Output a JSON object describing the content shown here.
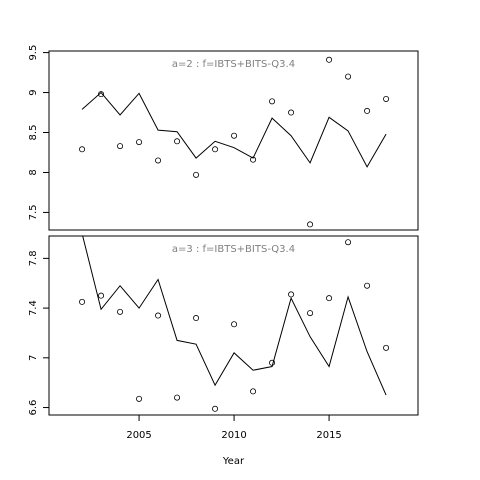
{
  "chart_data": [
    {
      "type": "line",
      "title": "a=2  :  f=IBTS+BITS-Q3.4",
      "x": [
        2002,
        2003,
        2004,
        2005,
        2006,
        2007,
        2008,
        2009,
        2010,
        2011,
        2012,
        2013,
        2014,
        2015,
        2016,
        2017,
        2018
      ],
      "series": [
        {
          "mode": "line",
          "color": "#000000",
          "values": [
            8.79,
            9.0,
            8.72,
            8.99,
            8.53,
            8.51,
            8.18,
            8.39,
            8.31,
            8.18,
            8.68,
            8.46,
            8.12,
            8.69,
            8.52,
            8.07,
            8.48
          ]
        },
        {
          "mode": "points",
          "color": "#000000",
          "values": [
            8.29,
            8.98,
            8.33,
            8.38,
            8.15,
            8.39,
            7.97,
            8.29,
            8.46,
            8.16,
            8.89,
            8.75,
            7.35,
            9.41,
            9.2,
            8.77,
            8.92
          ]
        }
      ],
      "xlim": [
        2000.26,
        2019.68
      ],
      "ylim": [
        7.28,
        9.52
      ],
      "yticks": [
        7.5,
        8.0,
        8.5,
        9.0,
        9.5
      ]
    },
    {
      "type": "line",
      "title": "a=3  :  f=IBTS+BITS-Q3.4",
      "xlabel": "Year",
      "x": [
        2002,
        2003,
        2004,
        2005,
        2006,
        2007,
        2008,
        2009,
        2010,
        2011,
        2012,
        2013,
        2014,
        2015,
        2016,
        2017,
        2018
      ],
      "series": [
        {
          "mode": "line",
          "color": "#000000",
          "values": [
            8.0,
            7.39,
            7.58,
            7.4,
            7.63,
            7.14,
            7.11,
            6.78,
            7.04,
            6.9,
            6.93,
            7.48,
            7.17,
            6.93,
            7.49,
            7.05,
            6.7
          ]
        },
        {
          "mode": "points",
          "color": "#000000",
          "values": [
            7.45,
            7.5,
            7.37,
            6.67,
            7.34,
            6.68,
            7.32,
            6.59,
            7.27,
            6.73,
            6.96,
            7.51,
            7.36,
            7.48,
            7.93,
            7.58,
            7.08
          ]
        }
      ],
      "xlim": [
        2000.26,
        2019.68
      ],
      "ylim": [
        6.54,
        7.98
      ],
      "xticks": [
        2005,
        2010,
        2015
      ],
      "yticks": [
        6.6,
        7.0,
        7.4,
        7.8
      ]
    }
  ]
}
